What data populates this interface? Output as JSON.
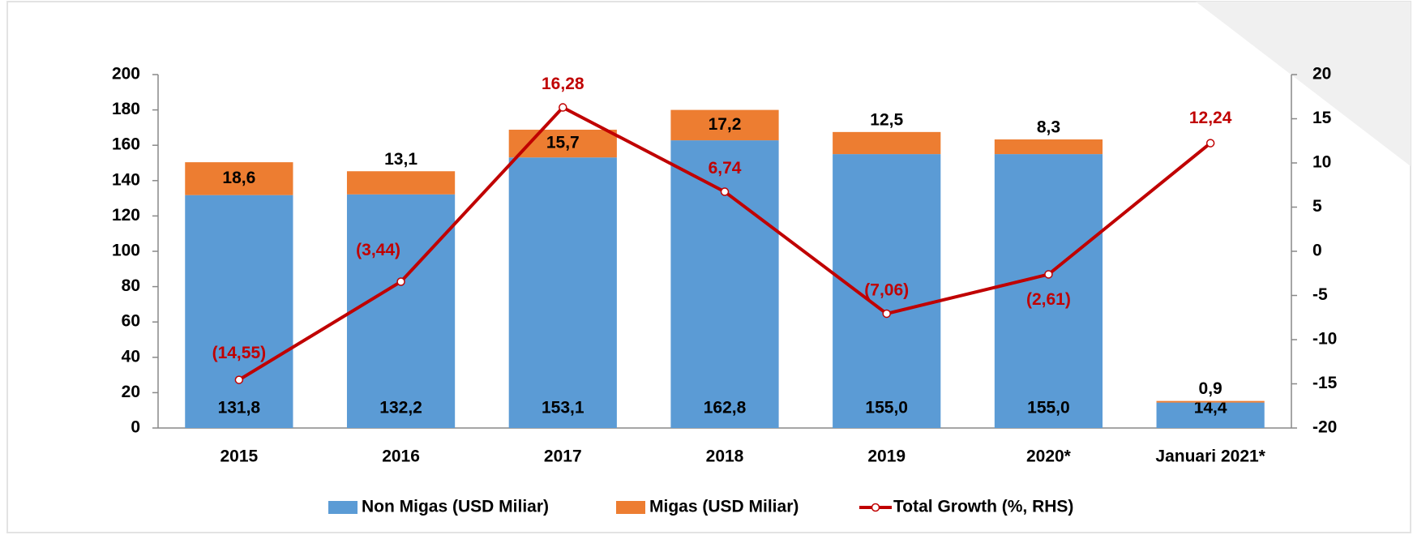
{
  "chart_data": {
    "type": "bar",
    "categories": [
      "2015",
      "2016",
      "2017",
      "2018",
      "2019",
      "2020*",
      "Januari 2021*"
    ],
    "stacked": true,
    "series": [
      {
        "name": "Non Migas (USD Miliar)",
        "color": "#5b9bd5",
        "values": [
          131.8,
          132.2,
          153.1,
          162.8,
          155.0,
          155.0,
          14.4
        ],
        "value_labels": [
          "131,8",
          "132,2",
          "153,1",
          "162,8",
          "155,0",
          "155,0",
          "14,4"
        ]
      },
      {
        "name": "Migas (USD Miliar)",
        "color": "#ed7d31",
        "values": [
          18.6,
          13.1,
          15.7,
          17.2,
          12.5,
          8.3,
          0.9
        ],
        "value_labels": [
          "18,6",
          "13,1",
          "15,7",
          "17,2",
          "12,5",
          "8,3",
          "0,9"
        ]
      },
      {
        "name": "Total Growth (%, RHS)",
        "type": "line",
        "axis": "y2",
        "color": "#c00000",
        "values": [
          -14.55,
          -3.44,
          16.28,
          6.74,
          -7.06,
          -2.61,
          12.24
        ],
        "value_labels": [
          "(14,55)",
          "(3,44)",
          "16,28",
          "6,74",
          "(7,06)",
          "(2,61)",
          "12,24"
        ]
      }
    ],
    "ylim": [
      0,
      200
    ],
    "yticks": [
      0,
      20,
      40,
      60,
      80,
      100,
      120,
      140,
      160,
      180,
      200
    ],
    "y2lim": [
      -20,
      20
    ],
    "y2ticks": [
      -20,
      -15,
      -10,
      -5,
      0,
      5,
      10,
      15,
      20
    ],
    "grid": false,
    "legend": "bottom"
  }
}
